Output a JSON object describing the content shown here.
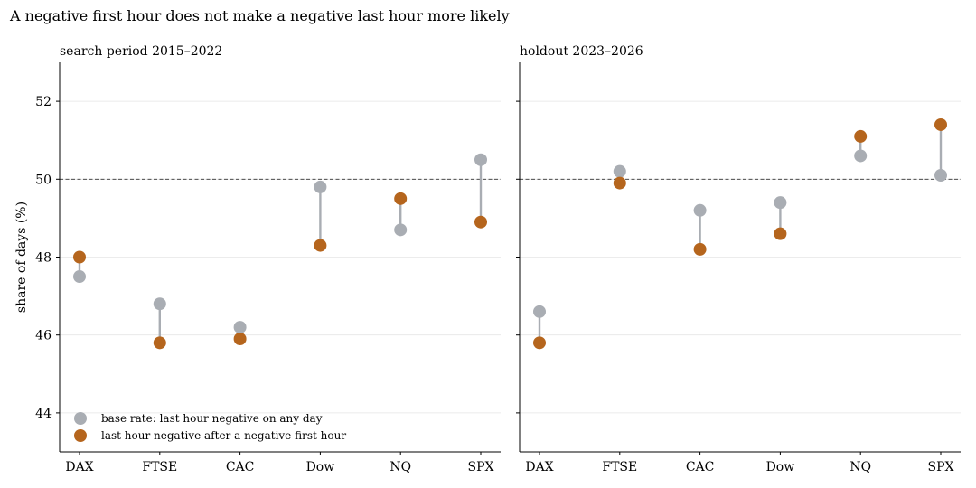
{
  "figure_title": "A negative first hour does not make a negative last hour more likely",
  "colors": {
    "base": "#a9adb3",
    "conditional": "#b5651d",
    "connector": "#a9adb3",
    "grid": "#e6e6e6",
    "reference_line": "#333333"
  },
  "chart_data": [
    {
      "type": "dumbbell",
      "title": "search period 2015–2022",
      "xlabel": "",
      "ylabel": "share of days (%)",
      "categories": [
        "DAX",
        "FTSE",
        "CAC",
        "Dow",
        "NQ",
        "SPX"
      ],
      "ylim": [
        43,
        53
      ],
      "yticks": [
        44,
        46,
        48,
        50,
        52
      ],
      "reference_line": 50,
      "grid": "horizontal",
      "legend_placement": "bottom-left",
      "series": [
        {
          "name": "base rate: last hour negative on any day",
          "values": [
            47.5,
            46.8,
            46.2,
            49.8,
            48.7,
            50.5
          ]
        },
        {
          "name": "last hour negative after a negative first hour",
          "values": [
            48.0,
            45.8,
            45.9,
            48.3,
            49.5,
            48.9
          ]
        }
      ]
    },
    {
      "type": "dumbbell",
      "title": "holdout 2023–2026",
      "xlabel": "",
      "ylabel": "",
      "categories": [
        "DAX",
        "FTSE",
        "CAC",
        "Dow",
        "NQ",
        "SPX"
      ],
      "ylim": [
        43,
        53
      ],
      "yticks": [
        44,
        46,
        48,
        50,
        52
      ],
      "reference_line": 50,
      "grid": "horizontal",
      "series": [
        {
          "name": "base rate: last hour negative on any day",
          "values": [
            46.6,
            50.2,
            49.2,
            49.4,
            50.6,
            50.1
          ]
        },
        {
          "name": "last hour negative after a negative first hour",
          "values": [
            45.8,
            49.9,
            48.2,
            48.6,
            51.1,
            51.4
          ]
        }
      ]
    }
  ]
}
